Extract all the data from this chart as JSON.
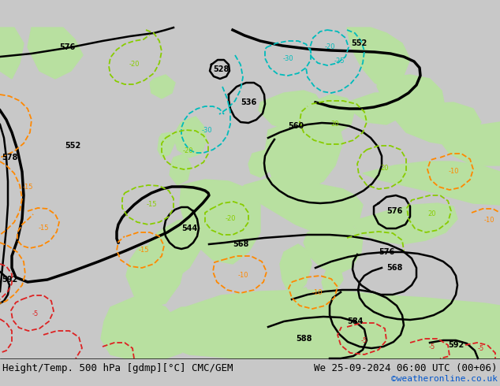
{
  "title_left": "Height/Temp. 500 hPa [gdmp][°C] CMC/GEM",
  "title_right": "We 25-09-2024 06:00 UTC (00+06)",
  "credit": "©weatheronline.co.uk",
  "bg_color": "#c8c8c8",
  "land_color": "#b8e0a0",
  "sea_color": "#c8c8c8",
  "title_fontsize": 9,
  "credit_color": "#0055cc",
  "figsize": [
    6.34,
    4.9
  ],
  "dpi": 100
}
